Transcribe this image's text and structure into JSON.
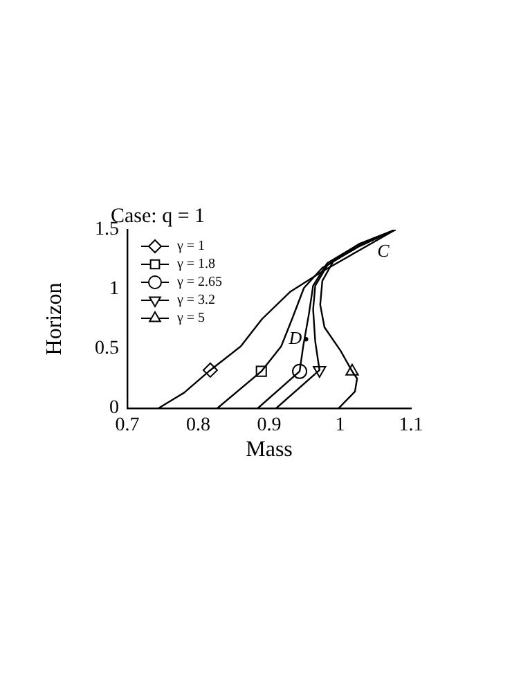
{
  "chart_data": {
    "type": "line",
    "title": "Case: q = 1",
    "xlabel": "Mass",
    "ylabel": "Horizon",
    "xlim": [
      0.7,
      1.1
    ],
    "xticks": [
      0.7,
      0.8,
      0.9,
      1,
      1.1
    ],
    "ylim": [
      0,
      1.5
    ],
    "yticks": [
      0,
      0.5,
      1,
      1.5
    ],
    "grid": false,
    "legend": "top left",
    "line_style": "solid",
    "series": [
      {
        "color": "#000000",
        "marker": "none",
        "x": [
          0.744,
          0.78,
          0.817,
          0.86,
          0.89,
          0.93,
          0.975,
          1.025,
          1.078
        ],
        "values": [
          0,
          0.13,
          0.32,
          0.52,
          0.75,
          0.98,
          1.15,
          1.32,
          1.5
        ]
      },
      {
        "color": "#000000",
        "marker": "none",
        "x": [
          0.827,
          0.889,
          0.917,
          0.933,
          0.949,
          0.975,
          1.027,
          1.078
        ],
        "values": [
          0,
          0.31,
          0.52,
          0.76,
          1.01,
          1.18,
          1.36,
          1.5
        ]
      },
      {
        "color": "#000000",
        "marker": "none",
        "x": [
          0.884,
          0.943,
          0.948,
          0.956,
          0.962,
          0.982,
          1.027,
          1.078
        ],
        "values": [
          0,
          0.31,
          0.52,
          0.79,
          1.03,
          1.22,
          1.38,
          1.5
        ]
      },
      {
        "color": "#000000",
        "marker": "none",
        "x": [
          0.91,
          0.971,
          0.965,
          0.962,
          0.965,
          0.982,
          1.027,
          1.078
        ],
        "values": [
          0,
          0.32,
          0.56,
          0.83,
          1.03,
          1.2,
          1.37,
          1.5
        ]
      },
      {
        "color": "#000000",
        "marker": "none",
        "x": [
          0.998,
          1.021,
          1.024,
          1.017,
          1.001,
          0.978,
          0.972,
          0.975,
          0.991,
          1.027,
          1.078
        ],
        "values": [
          0,
          0.14,
          0.25,
          0.31,
          0.48,
          0.68,
          0.87,
          1.07,
          1.24,
          1.38,
          1.5
        ]
      },
      {
        "type": "scatter",
        "name": "γ = 1",
        "color": "#000000",
        "marker": "diamond",
        "x": [
          0.817
        ],
        "values": [
          0.32
        ]
      },
      {
        "type": "scatter",
        "name": "γ = 1.8",
        "color": "#000000",
        "marker": "square",
        "x": [
          0.889
        ],
        "values": [
          0.31
        ]
      },
      {
        "type": "scatter",
        "name": "γ = 2.65",
        "color": "#000000",
        "marker": "circle",
        "x": [
          0.943
        ],
        "values": [
          0.31
        ]
      },
      {
        "type": "scatter",
        "name": "γ = 3.2",
        "color": "#000000",
        "marker": "triangle",
        "x": [
          0.971
        ],
        "values": [
          0.32
        ]
      },
      {
        "type": "scatter",
        "name": "γ = 5",
        "color": "#000000",
        "marker": "triangle",
        "x": [
          1.017
        ],
        "values": [
          0.31
        ]
      }
    ],
    "annotations": [
      "C",
      {
        "text": "D",
        "x": 0.952,
        "y": 0.58
      }
    ]
  }
}
